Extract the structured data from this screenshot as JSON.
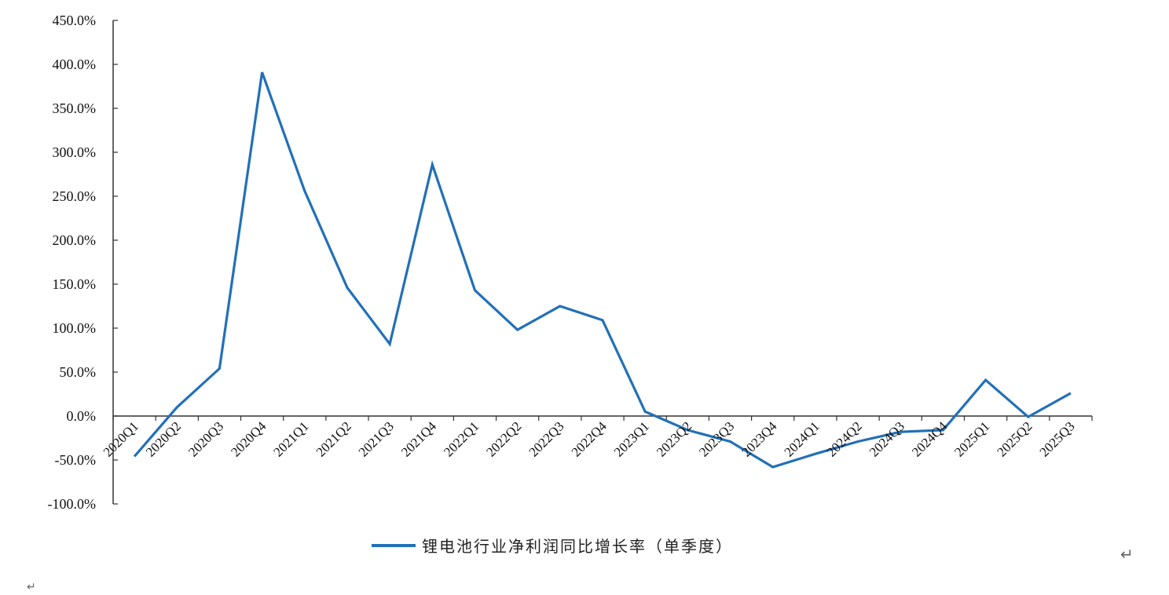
{
  "chart_data": {
    "type": "line",
    "title": "",
    "xlabel": "",
    "ylabel": "",
    "categories": [
      "2020Q1",
      "2020Q2",
      "2020Q3",
      "2020Q4",
      "2021Q1",
      "2021Q2",
      "2021Q3",
      "2021Q4",
      "2022Q1",
      "2022Q2",
      "2022Q3",
      "2022Q4",
      "2023Q1",
      "2023Q2",
      "2023Q3",
      "2023Q4",
      "2024Q1",
      "2024Q2",
      "2024Q3",
      "2024Q4",
      "2025Q1",
      "2025Q2",
      "2025Q3"
    ],
    "series": [
      {
        "name": "锂电池行业净利润同比增长率（单季度）",
        "color": "#2270b8",
        "values": [
          -46,
          10,
          54,
          391,
          256,
          146,
          82,
          286,
          143,
          98,
          125,
          109,
          5,
          -16,
          -29,
          -58,
          -43,
          -29,
          -18,
          -16,
          41,
          -1,
          26
        ]
      }
    ],
    "ylim": [
      -100,
      450
    ],
    "yticks": [
      -100,
      -50,
      0,
      50,
      100,
      150,
      200,
      250,
      300,
      350,
      400,
      450
    ],
    "ytick_labels": [
      "-100.0%",
      "-50.0%",
      "0.0%",
      "50.0%",
      "100.0%",
      "150.0%",
      "200.0%",
      "250.0%",
      "300.0%",
      "350.0%",
      "400.0%",
      "450.0%"
    ],
    "grid": false,
    "legend_placement": "bottom-center"
  },
  "marks": {
    "return_mark": "↵",
    "corner_mark": "↵"
  }
}
